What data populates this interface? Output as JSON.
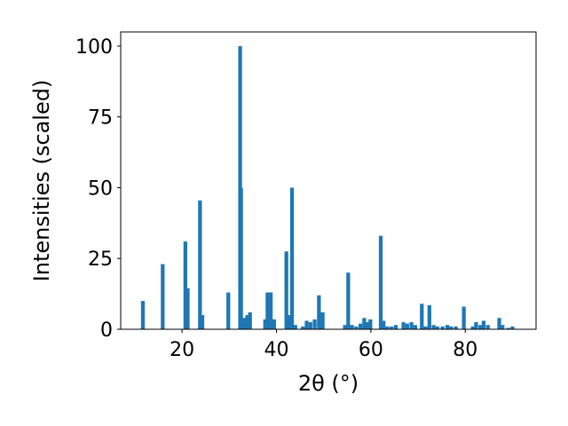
{
  "chart_data": {
    "type": "bar",
    "xlabel": "2θ (°)",
    "ylabel": "Intensities (scaled)",
    "xlim": [
      7,
      95
    ],
    "ylim": [
      0,
      105
    ],
    "xticks": [
      "20",
      "40",
      "60",
      "80"
    ],
    "yticks": [
      "0",
      "25",
      "50",
      "75",
      "100"
    ],
    "bar_width_deg": 0.8,
    "bar_color": "#1f77b4",
    "grid": false,
    "x": [
      11.7,
      15.9,
      20.7,
      21.2,
      23.8,
      24.3,
      29.8,
      32.3,
      32.5,
      33.2,
      33.8,
      34.4,
      37.6,
      38.1,
      38.8,
      39.5,
      42.1,
      42.8,
      43.3,
      44.0,
      45.6,
      46.4,
      47.2,
      48.1,
      49.0,
      49.8,
      54.5,
      55.2,
      56.0,
      56.9,
      57.8,
      58.6,
      59.3,
      59.9,
      62.1,
      62.7,
      63.5,
      64.4,
      65.3,
      66.9,
      67.7,
      68.6,
      69.4,
      70.8,
      71.6,
      72.4,
      73.3,
      74.1,
      75.2,
      76.2,
      77.0,
      78.0,
      79.7,
      81.6,
      82.3,
      83.2,
      83.9,
      84.8,
      87.2,
      87.9,
      89.1,
      90.0
    ],
    "values": [
      10,
      23,
      31,
      14.5,
      45.5,
      5,
      13,
      100,
      50,
      4,
      5,
      6,
      3.5,
      13,
      13,
      3.5,
      27.5,
      5,
      50,
      1.5,
      1,
      3,
      2.5,
      3.5,
      12,
      6,
      1.5,
      20,
      1.5,
      1,
      2,
      4,
      2.5,
      3.5,
      33,
      3,
      1,
      1,
      1.5,
      2.5,
      2,
      2.5,
      1.5,
      9,
      1,
      8.5,
      1.5,
      1,
      1,
      1.5,
      1,
      1,
      8,
      1,
      2.5,
      1.5,
      3,
      1.5,
      4,
      1.5,
      0.5,
      1
    ]
  }
}
